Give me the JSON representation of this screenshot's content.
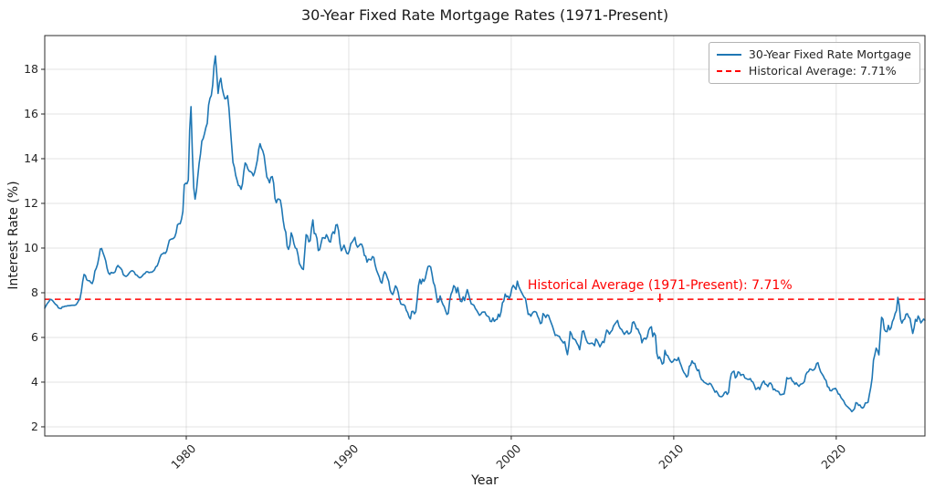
{
  "chart_data": {
    "type": "line",
    "title": "30-Year Fixed Rate Mortgage Rates (1971-Present)",
    "xlabel": "Year",
    "ylabel": "Interest Rate (%)",
    "x_ticks": [
      1980,
      1990,
      2000,
      2010,
      2020
    ],
    "y_ticks": [
      2,
      4,
      6,
      8,
      10,
      12,
      14,
      16,
      18
    ],
    "xlim": [
      1971.29,
      2025.46
    ],
    "ylim": [
      1.59,
      19.51
    ],
    "grid": true,
    "legend_position": "upper right",
    "legend": [
      {
        "label": "30-Year Fixed Rate Mortgage",
        "color": "#1f77b4",
        "style": "solid"
      },
      {
        "label": "Historical Average: 7.71%",
        "color": "#ff0000",
        "style": "dashed"
      }
    ],
    "average_line": {
      "value": 7.71,
      "color": "#ff0000"
    },
    "annotation": {
      "text": "Historical Average (1971-Present): 7.71%",
      "color": "#ff0000",
      "x_year": 2009.15,
      "y_value": 8.33
    },
    "series": [
      {
        "name": "30-Year Fixed Rate Mortgage",
        "color": "#1f77b4",
        "frequency": "monthly",
        "start_year": 1971,
        "start_month": 4,
        "values": [
          7.31,
          7.43,
          7.53,
          7.6,
          7.7,
          7.69,
          7.63,
          7.55,
          7.48,
          7.44,
          7.33,
          7.3,
          7.29,
          7.37,
          7.37,
          7.4,
          7.4,
          7.42,
          7.42,
          7.43,
          7.44,
          7.44,
          7.44,
          7.46,
          7.54,
          7.65,
          7.73,
          8.05,
          8.5,
          8.82,
          8.77,
          8.58,
          8.54,
          8.54,
          8.46,
          8.41,
          8.58,
          8.97,
          9.09,
          9.28,
          9.59,
          9.96,
          9.98,
          9.79,
          9.62,
          9.43,
          9.1,
          8.89,
          8.82,
          8.91,
          8.89,
          8.89,
          8.94,
          9.13,
          9.22,
          9.15,
          9.1,
          9.02,
          8.81,
          8.76,
          8.73,
          8.77,
          8.85,
          8.93,
          8.98,
          8.98,
          8.93,
          8.81,
          8.79,
          8.72,
          8.67,
          8.69,
          8.75,
          8.83,
          8.86,
          8.94,
          8.94,
          8.9,
          8.92,
          8.92,
          8.96,
          9.02,
          9.16,
          9.2,
          9.36,
          9.57,
          9.71,
          9.74,
          9.79,
          9.76,
          9.86,
          10.11,
          10.35,
          10.39,
          10.41,
          10.43,
          10.5,
          10.69,
          11.04,
          11.09,
          11.09,
          11.3,
          11.64,
          12.83,
          12.9,
          12.88,
          13.04,
          15.28,
          16.33,
          14.26,
          12.71,
          12.19,
          12.56,
          13.2,
          13.79,
          14.21,
          14.79,
          14.9,
          15.13,
          15.4,
          15.58,
          16.4,
          16.7,
          16.83,
          17.29,
          18.16,
          18.6,
          17.83,
          16.92,
          17.4,
          17.6,
          17.16,
          16.89,
          16.68,
          16.7,
          16.82,
          16.27,
          15.43,
          14.61,
          13.83,
          13.62,
          13.25,
          13.04,
          12.8,
          12.78,
          12.63,
          12.87,
          13.43,
          13.81,
          13.73,
          13.54,
          13.44,
          13.42,
          13.37,
          13.23,
          13.39,
          13.65,
          13.94,
          14.42,
          14.67,
          14.47,
          14.35,
          14.13,
          13.64,
          13.18,
          13.08,
          12.92,
          13.17,
          13.2,
          12.91,
          12.22,
          12.03,
          12.19,
          12.19,
          12.14,
          11.78,
          11.26,
          10.88,
          10.71,
          10.08,
          9.94,
          10.14,
          10.68,
          10.51,
          10.2,
          10.01,
          9.97,
          9.7,
          9.31,
          9.2,
          9.08,
          9.04,
          9.83,
          10.6,
          10.54,
          10.28,
          10.33,
          10.89,
          11.26,
          10.65,
          10.64,
          10.43,
          9.89,
          9.93,
          10.2,
          10.46,
          10.46,
          10.43,
          10.6,
          10.48,
          10.3,
          10.27,
          10.61,
          10.73,
          10.65,
          11.03,
          11.05,
          10.77,
          10.2,
          9.88,
          9.99,
          10.13,
          9.95,
          9.77,
          9.74,
          9.9,
          10.2,
          10.27,
          10.37,
          10.48,
          10.16,
          10.04,
          10.1,
          10.18,
          10.17,
          10.01,
          9.67,
          9.64,
          9.37,
          9.5,
          9.49,
          9.47,
          9.62,
          9.58,
          9.24,
          9.01,
          8.86,
          8.71,
          8.5,
          8.43,
          8.76,
          8.94,
          8.85,
          8.67,
          8.51,
          8.13,
          7.98,
          7.92,
          8.09,
          8.31,
          8.22,
          8.02,
          7.68,
          7.5,
          7.47,
          7.47,
          7.42,
          7.21,
          7.11,
          6.92,
          6.83,
          7.16,
          7.17,
          7.06,
          7.15,
          7.68,
          8.32,
          8.6,
          8.4,
          8.61,
          8.51,
          8.64,
          8.93,
          9.17,
          9.2,
          9.15,
          8.83,
          8.46,
          8.32,
          7.96,
          7.57,
          7.61,
          7.86,
          7.64,
          7.48,
          7.38,
          7.2,
          7.03,
          7.08,
          7.62,
          7.93,
          8.07,
          8.32,
          8.25,
          8.0,
          8.23,
          7.92,
          7.62,
          7.6,
          7.82,
          7.65,
          7.9,
          8.14,
          7.94,
          7.69,
          7.5,
          7.48,
          7.43,
          7.29,
          7.21,
          7.1,
          6.99,
          7.04,
          7.13,
          7.14,
          7.14,
          7.0,
          6.95,
          6.92,
          6.72,
          6.71,
          6.87,
          6.72,
          6.79,
          6.81,
          7.04,
          6.92,
          7.15,
          7.55,
          7.63,
          7.94,
          7.82,
          7.85,
          7.74,
          7.91,
          8.21,
          8.33,
          8.24,
          8.15,
          8.52,
          8.29,
          8.15,
          8.03,
          7.91,
          7.8,
          7.75,
          7.38,
          7.03,
          7.05,
          6.95,
          7.08,
          7.15,
          7.16,
          7.13,
          6.95,
          6.82,
          6.62,
          6.66,
          7.07,
          7.0,
          6.89,
          7.01,
          6.99,
          6.81,
          6.65,
          6.49,
          6.29,
          6.09,
          6.11,
          6.07,
          6.05,
          5.92,
          5.84,
          5.75,
          5.81,
          5.48,
          5.23,
          5.63,
          6.26,
          6.15,
          5.95,
          5.93,
          5.88,
          5.74,
          5.64,
          5.45,
          5.83,
          6.27,
          6.29,
          6.06,
          5.87,
          5.75,
          5.72,
          5.73,
          5.75,
          5.71,
          5.63,
          5.93,
          5.86,
          5.72,
          5.58,
          5.7,
          5.82,
          5.77,
          6.07,
          6.33,
          6.27,
          6.15,
          6.25,
          6.32,
          6.51,
          6.6,
          6.68,
          6.76,
          6.52,
          6.4,
          6.36,
          6.24,
          6.14,
          6.22,
          6.29,
          6.16,
          6.18,
          6.26,
          6.66,
          6.7,
          6.57,
          6.38,
          6.38,
          6.21,
          6.1,
          5.76,
          5.92,
          5.97,
          5.92,
          6.04,
          6.32,
          6.43,
          6.48,
          6.04,
          6.2,
          6.09,
          5.29,
          5.05,
          5.13,
          5.0,
          4.81,
          4.86,
          5.42,
          5.22,
          5.19,
          5.06,
          4.95,
          4.88,
          4.93,
          5.03,
          4.99,
          4.97,
          5.1,
          4.89,
          4.74,
          4.56,
          4.43,
          4.35,
          4.23,
          4.3,
          4.71,
          4.76,
          4.95,
          4.84,
          4.84,
          4.64,
          4.51,
          4.55,
          4.27,
          4.11,
          4.07,
          3.99,
          3.96,
          3.92,
          3.89,
          3.95,
          3.91,
          3.8,
          3.68,
          3.55,
          3.6,
          3.5,
          3.38,
          3.35,
          3.35,
          3.41,
          3.53,
          3.57,
          3.45,
          3.54,
          4.07,
          4.37,
          4.46,
          4.49,
          4.19,
          4.26,
          4.46,
          4.43,
          4.3,
          4.34,
          4.34,
          4.19,
          4.16,
          4.13,
          4.12,
          4.16,
          4.04,
          4.0,
          3.86,
          3.67,
          3.71,
          3.77,
          3.67,
          3.84,
          3.98,
          4.05,
          3.91,
          3.89,
          3.8,
          3.94,
          3.96,
          3.87,
          3.66,
          3.69,
          3.61,
          3.6,
          3.57,
          3.44,
          3.44,
          3.46,
          3.47,
          3.77,
          4.2,
          4.15,
          4.17,
          4.2,
          4.05,
          4.01,
          3.9,
          3.97,
          3.88,
          3.81,
          3.9,
          3.92,
          3.95,
          4.03,
          4.33,
          4.44,
          4.47,
          4.59,
          4.57,
          4.53,
          4.55,
          4.63,
          4.83,
          4.87,
          4.64,
          4.46,
          4.37,
          4.27,
          4.14,
          4.07,
          3.8,
          3.77,
          3.62,
          3.61,
          3.69,
          3.7,
          3.72,
          3.62,
          3.47,
          3.45,
          3.31,
          3.23,
          3.16,
          3.02,
          2.94,
          2.89,
          2.83,
          2.77,
          2.68,
          2.74,
          2.81,
          3.08,
          3.06,
          2.96,
          2.98,
          2.87,
          2.84,
          2.9,
          3.07,
          3.07,
          3.1,
          3.45,
          3.76,
          4.17,
          4.98,
          5.23,
          5.52,
          5.41,
          5.22,
          6.11,
          6.9,
          6.81,
          6.36,
          6.27,
          6.26,
          6.54,
          6.34,
          6.43,
          6.71,
          6.84,
          7.07,
          7.2,
          7.79,
          7.44,
          6.82,
          6.64,
          6.78,
          6.82,
          7.04,
          7.06,
          6.92,
          6.85,
          6.5,
          6.18,
          6.43,
          6.81,
          6.72,
          6.96,
          6.84,
          6.65,
          6.73,
          6.82,
          6.77
        ]
      }
    ]
  }
}
